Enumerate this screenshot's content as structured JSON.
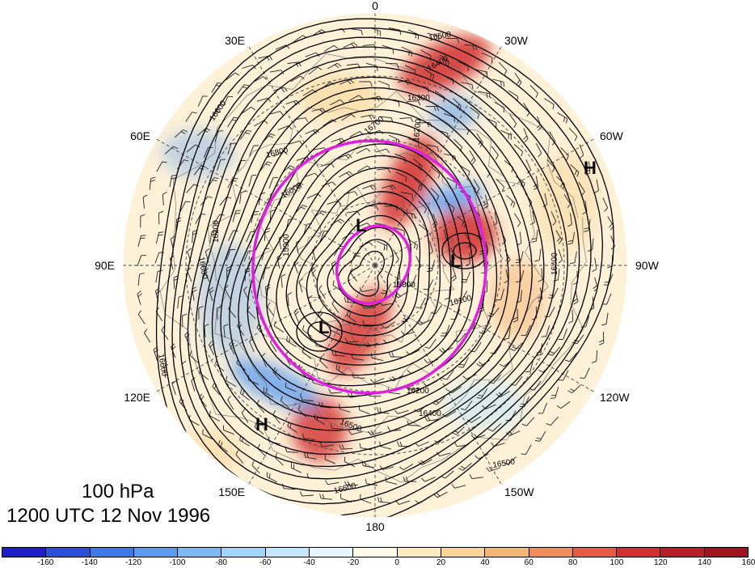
{
  "longitude_labels": [
    "0",
    "30W",
    "60W",
    "90W",
    "120W",
    "150W",
    "180",
    "150E",
    "120E",
    "90E",
    "60E",
    "30E"
  ],
  "height_contours": [
    "16500",
    "16400",
    "16300",
    "16700",
    "16200",
    "16800",
    "16600",
    "16000",
    "15900",
    "16100",
    "15800",
    "16500",
    "16400",
    "16200",
    "16400",
    "16600",
    "16500",
    "16600",
    "16200",
    "16600"
  ],
  "centers": [
    "H",
    "H",
    "L",
    "L",
    "L"
  ],
  "title": {
    "level": "100 hPa",
    "time": "1200 UTC 12 Nov 1996"
  },
  "colorbar": {
    "colors": [
      "#1e1ec8",
      "#2a4fd8",
      "#3c78e6",
      "#5a9bf0",
      "#7cbaf5",
      "#a0d4fa",
      "#c4e6fc",
      "#e6f6fe",
      "#fffbe6",
      "#fde9bd",
      "#fad595",
      "#f5b575",
      "#ef8c5a",
      "#e45a43",
      "#d23030",
      "#b81e28",
      "#a01420"
    ],
    "tick_labels": [
      "-160",
      "-140",
      "-120",
      "-100",
      "-80",
      "-60",
      "-40",
      "-20",
      "0",
      "20",
      "40",
      "60",
      "80",
      "100",
      "120",
      "140",
      "160"
    ]
  },
  "colors": {
    "negative_anomaly": "#5a9bf0",
    "positive_anomaly": "#d23030",
    "highlight_circle": "#e020e0"
  }
}
